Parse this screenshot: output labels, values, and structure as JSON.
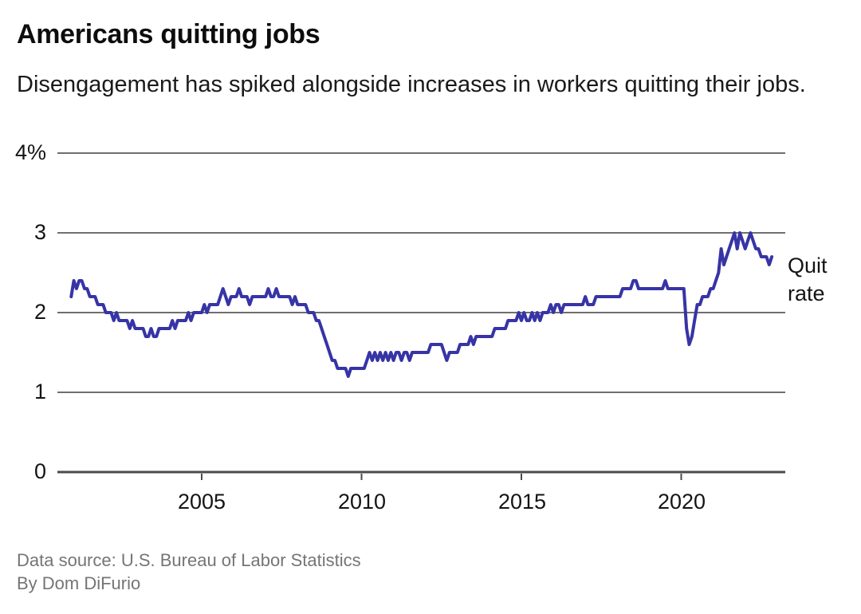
{
  "chart_data": {
    "type": "line",
    "title": "Americans quitting jobs",
    "subtitle": "Disengagement has spiked alongside increases in workers quitting their jobs.",
    "unit": "%",
    "grid": "horizontal",
    "legend_position": "right-of-line-end",
    "ylim": [
      0,
      4
    ],
    "x_range": [
      "2000-12",
      "2022-11"
    ],
    "y_ticks": [
      {
        "value": 4,
        "label": "4%"
      },
      {
        "value": 3,
        "label": "3"
      },
      {
        "value": 2,
        "label": "2"
      },
      {
        "value": 1,
        "label": "1"
      },
      {
        "value": 0,
        "label": "0"
      }
    ],
    "x_ticks": [
      {
        "value": 2005,
        "label": "2005"
      },
      {
        "value": 2010,
        "label": "2010"
      },
      {
        "value": 2015,
        "label": "2015"
      },
      {
        "value": 2020,
        "label": "2020"
      }
    ],
    "series": [
      {
        "name": "Quit rate",
        "frequency": "monthly",
        "start_month": "2000-12",
        "values": [
          2.2,
          2.4,
          2.3,
          2.4,
          2.4,
          2.3,
          2.3,
          2.2,
          2.2,
          2.2,
          2.1,
          2.1,
          2.1,
          2.0,
          2.0,
          2.0,
          1.9,
          2.0,
          1.9,
          1.9,
          1.9,
          1.9,
          1.8,
          1.9,
          1.8,
          1.8,
          1.8,
          1.8,
          1.7,
          1.7,
          1.8,
          1.7,
          1.7,
          1.8,
          1.8,
          1.8,
          1.8,
          1.8,
          1.9,
          1.8,
          1.9,
          1.9,
          1.9,
          1.9,
          2.0,
          1.9,
          2.0,
          2.0,
          2.0,
          2.0,
          2.1,
          2.0,
          2.1,
          2.1,
          2.1,
          2.1,
          2.2,
          2.3,
          2.2,
          2.1,
          2.2,
          2.2,
          2.2,
          2.3,
          2.2,
          2.2,
          2.2,
          2.1,
          2.2,
          2.2,
          2.2,
          2.2,
          2.2,
          2.2,
          2.3,
          2.2,
          2.2,
          2.3,
          2.2,
          2.2,
          2.2,
          2.2,
          2.2,
          2.1,
          2.2,
          2.1,
          2.1,
          2.1,
          2.1,
          2.0,
          2.0,
          2.0,
          1.9,
          1.9,
          1.8,
          1.7,
          1.6,
          1.5,
          1.4,
          1.4,
          1.3,
          1.3,
          1.3,
          1.3,
          1.2,
          1.3,
          1.3,
          1.3,
          1.3,
          1.3,
          1.3,
          1.4,
          1.5,
          1.4,
          1.5,
          1.4,
          1.5,
          1.4,
          1.5,
          1.4,
          1.5,
          1.4,
          1.5,
          1.5,
          1.4,
          1.5,
          1.5,
          1.4,
          1.5,
          1.5,
          1.5,
          1.5,
          1.5,
          1.5,
          1.5,
          1.6,
          1.6,
          1.6,
          1.6,
          1.6,
          1.5,
          1.4,
          1.5,
          1.5,
          1.5,
          1.5,
          1.6,
          1.6,
          1.6,
          1.6,
          1.7,
          1.6,
          1.7,
          1.7,
          1.7,
          1.7,
          1.7,
          1.7,
          1.7,
          1.8,
          1.8,
          1.8,
          1.8,
          1.8,
          1.9,
          1.9,
          1.9,
          1.9,
          2.0,
          1.9,
          2.0,
          1.9,
          1.9,
          2.0,
          1.9,
          2.0,
          1.9,
          2.0,
          2.0,
          2.0,
          2.1,
          2.0,
          2.1,
          2.1,
          2.0,
          2.1,
          2.1,
          2.1,
          2.1,
          2.1,
          2.1,
          2.1,
          2.1,
          2.2,
          2.1,
          2.1,
          2.1,
          2.2,
          2.2,
          2.2,
          2.2,
          2.2,
          2.2,
          2.2,
          2.2,
          2.2,
          2.2,
          2.3,
          2.3,
          2.3,
          2.3,
          2.4,
          2.4,
          2.3,
          2.3,
          2.3,
          2.3,
          2.3,
          2.3,
          2.3,
          2.3,
          2.3,
          2.3,
          2.4,
          2.3,
          2.3,
          2.3,
          2.3,
          2.3,
          2.3,
          2.3,
          1.8,
          1.6,
          1.7,
          1.9,
          2.1,
          2.1,
          2.2,
          2.2,
          2.2,
          2.3,
          2.3,
          2.4,
          2.5,
          2.8,
          2.6,
          2.7,
          2.8,
          2.9,
          3.0,
          2.8,
          3.0,
          2.9,
          2.8,
          2.9,
          3.0,
          2.9,
          2.8,
          2.8,
          2.7,
          2.7,
          2.7,
          2.6,
          2.7
        ]
      }
    ]
  },
  "footer": {
    "source_line": "Data source: U.S. Bureau of Labor Statistics",
    "byline": "By Dom DiFurio"
  },
  "colors": {
    "line": "#3734a6",
    "gridline": "#6f6f6f",
    "axis": "#4a4a4a",
    "title_text": "#0d0d0d",
    "body_text": "#1a1a1a",
    "muted_text": "#757575",
    "background": "#ffffff"
  }
}
